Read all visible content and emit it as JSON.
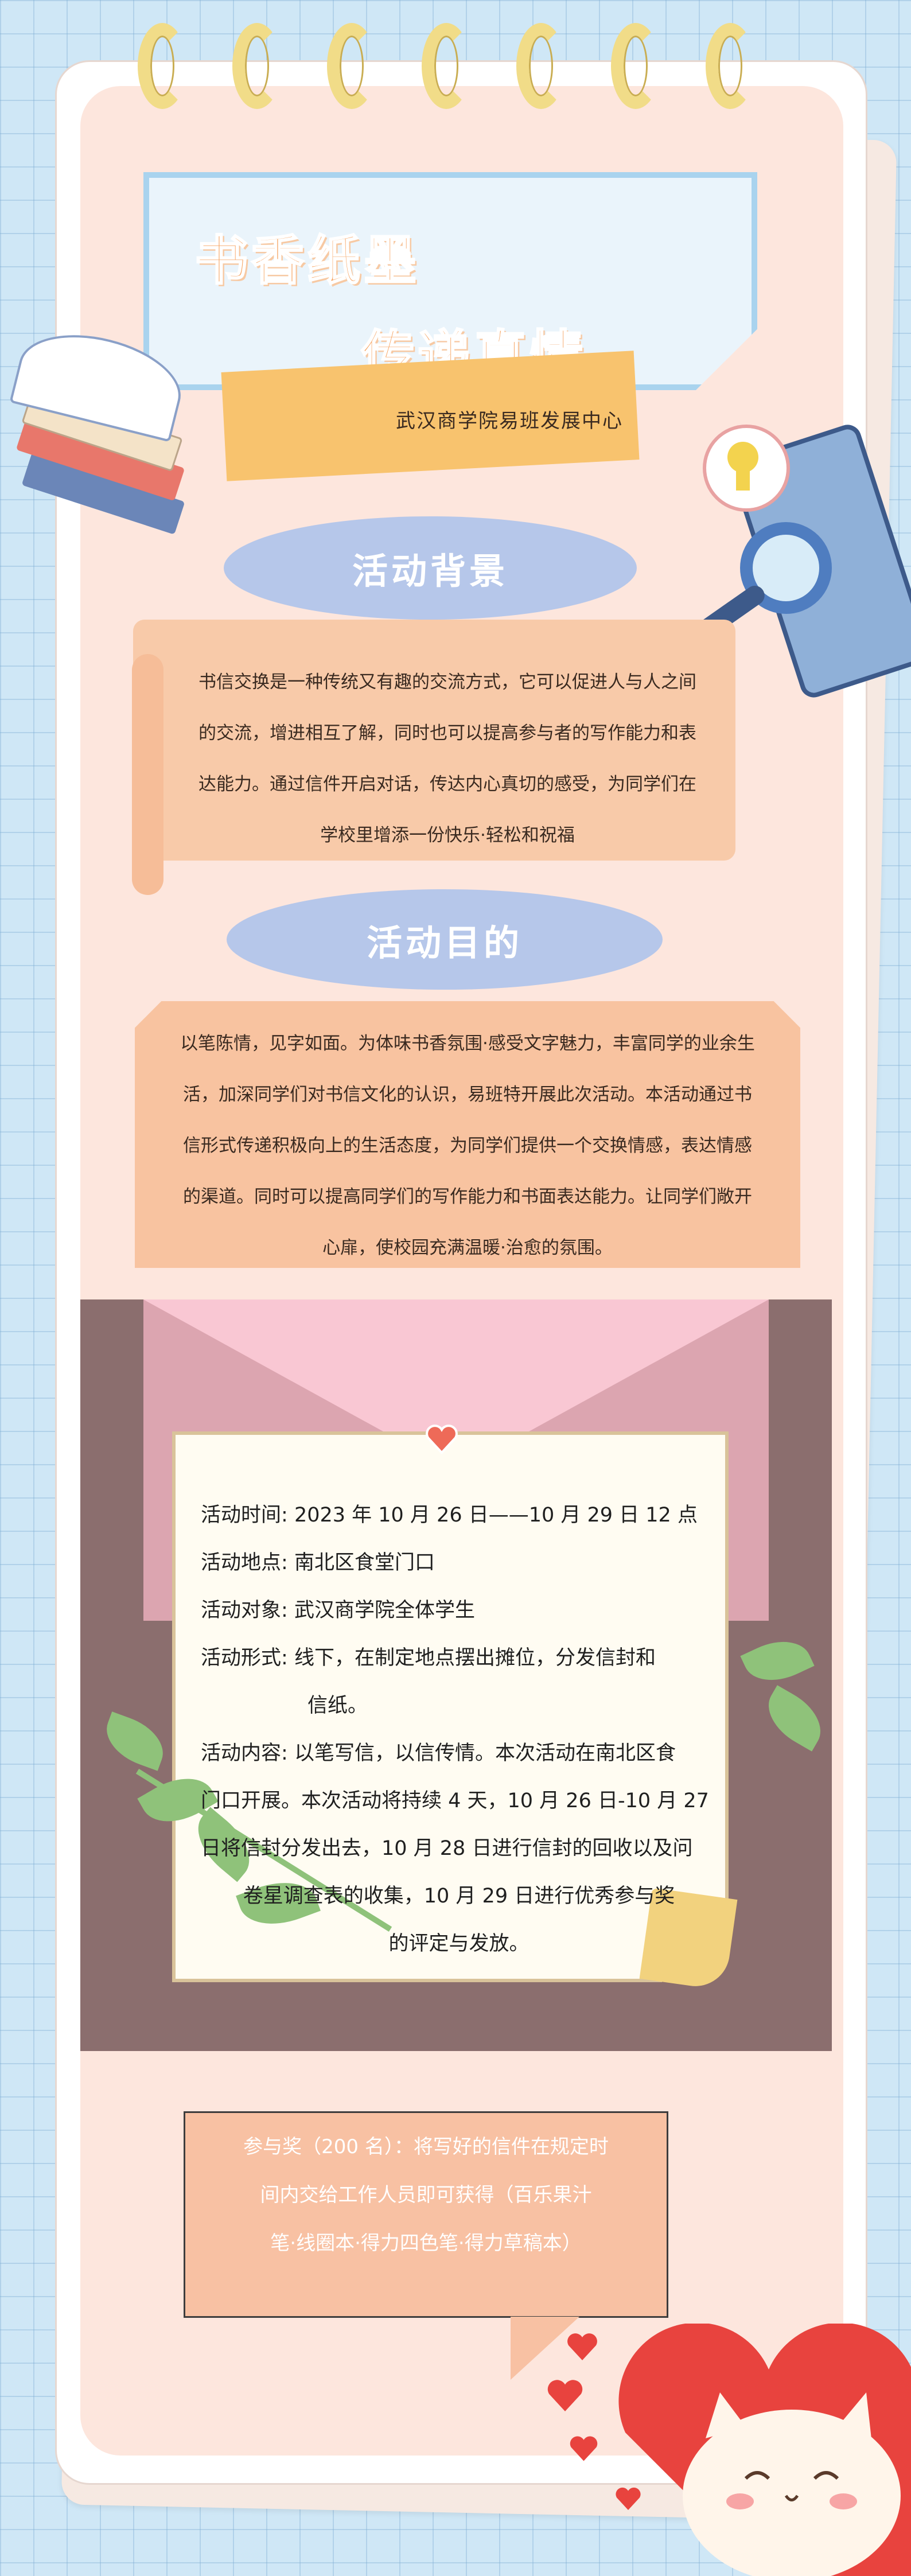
{
  "title": {
    "line1": "书香纸墨",
    "line2": "传递真情"
  },
  "organizer": "武汉商学院易班发展中心",
  "background": {
    "heading": "活动背景",
    "lines": [
      "书信交换是一种传统又有趣的交流方式，它可以促进人与人之间",
      "的交流，增进相互了解，同时也可以提高参与者的写作能力和表",
      "达能力。通过信件开启对话，传达内心真切的感受，为同学们在",
      "学校里增添一份快乐·轻松和祝福"
    ]
  },
  "purpose": {
    "heading": "活动目的",
    "lines": [
      "以笔陈情，见字如面。为体味书香氛围·感受文字魅力，丰富同学的业余生",
      "活，加深同学们对书信文化的认识，易班特开展此次活动。本活动通过书",
      "信形式传递积极向上的生活态度，为同学们提供一个交换情感，表达情感",
      "的渠道。同时可以提高同学们的写作能力和书面表达能力。让同学们敞开",
      "心扉，使校园充满温暖·治愈的氛围。"
    ]
  },
  "details": {
    "time": {
      "label": "活动时间:",
      "value": "2023 年 10 月 26 日——10 月 29 日 12 点"
    },
    "place": {
      "label": "活动地点:",
      "value": "南北区食堂门口"
    },
    "audience": {
      "label": "活动对象:",
      "value": "武汉商学院全体学生"
    },
    "format": {
      "label": "活动形式:",
      "value": "线下，在制定地点摆出摊位，分发信封和",
      "value2": "信纸。"
    },
    "content": {
      "label": "活动内容:",
      "value": "以笔写信，以信传情。本次活动在南北区食",
      "lines": [
        "门口开展。本次活动将持续 4 天，10 月 26 日-10 月 27",
        "日将信封分发出去，10 月 28 日进行信封的回收以及问",
        "卷星调查表的收集，10 月 29 日进行优秀参与奖",
        "的评定与发放。"
      ]
    }
  },
  "award": {
    "lines": [
      "参与奖（200 名）：将写好的信件在规定时",
      "间内交给工作人员即可获得（百乐果汁",
      "笔·线圈本·得力四色笔·得力草稿本）"
    ]
  },
  "colors": {
    "title": "#f6a15d",
    "heading_oval": "#b6c7ea",
    "box": "#f8caa9",
    "envelope": "#8b6e6e"
  }
}
